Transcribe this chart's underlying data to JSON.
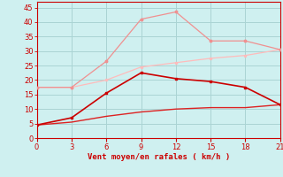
{
  "x": [
    0,
    3,
    6,
    9,
    12,
    15,
    18,
    21
  ],
  "line1": [
    17.5,
    17.5,
    26.5,
    41.0,
    43.5,
    33.5,
    33.5,
    30.5
  ],
  "line2": [
    17.5,
    17.5,
    20.0,
    24.5,
    26.0,
    27.5,
    28.5,
    30.5
  ],
  "line3": [
    4.5,
    7.0,
    15.5,
    22.5,
    20.5,
    19.5,
    17.5,
    11.5
  ],
  "line4": [
    4.5,
    5.5,
    7.5,
    9.0,
    10.0,
    10.5,
    10.5,
    11.5
  ],
  "color1": "#f09090",
  "color2": "#ffbbbb",
  "color3": "#cc0000",
  "color4": "#dd2222",
  "bg_color": "#cff0f0",
  "grid_color": "#aad4d4",
  "xlabel": "Vent moyen/en rafales ( km/h )",
  "xlabel_color": "#cc0000",
  "tick_color": "#cc0000",
  "axis_color": "#cc0000",
  "yticks": [
    0,
    5,
    10,
    15,
    20,
    25,
    30,
    35,
    40,
    45
  ],
  "xticks": [
    0,
    3,
    6,
    9,
    12,
    15,
    18,
    21
  ],
  "ylim": [
    0,
    47
  ],
  "xlim": [
    0,
    21
  ]
}
